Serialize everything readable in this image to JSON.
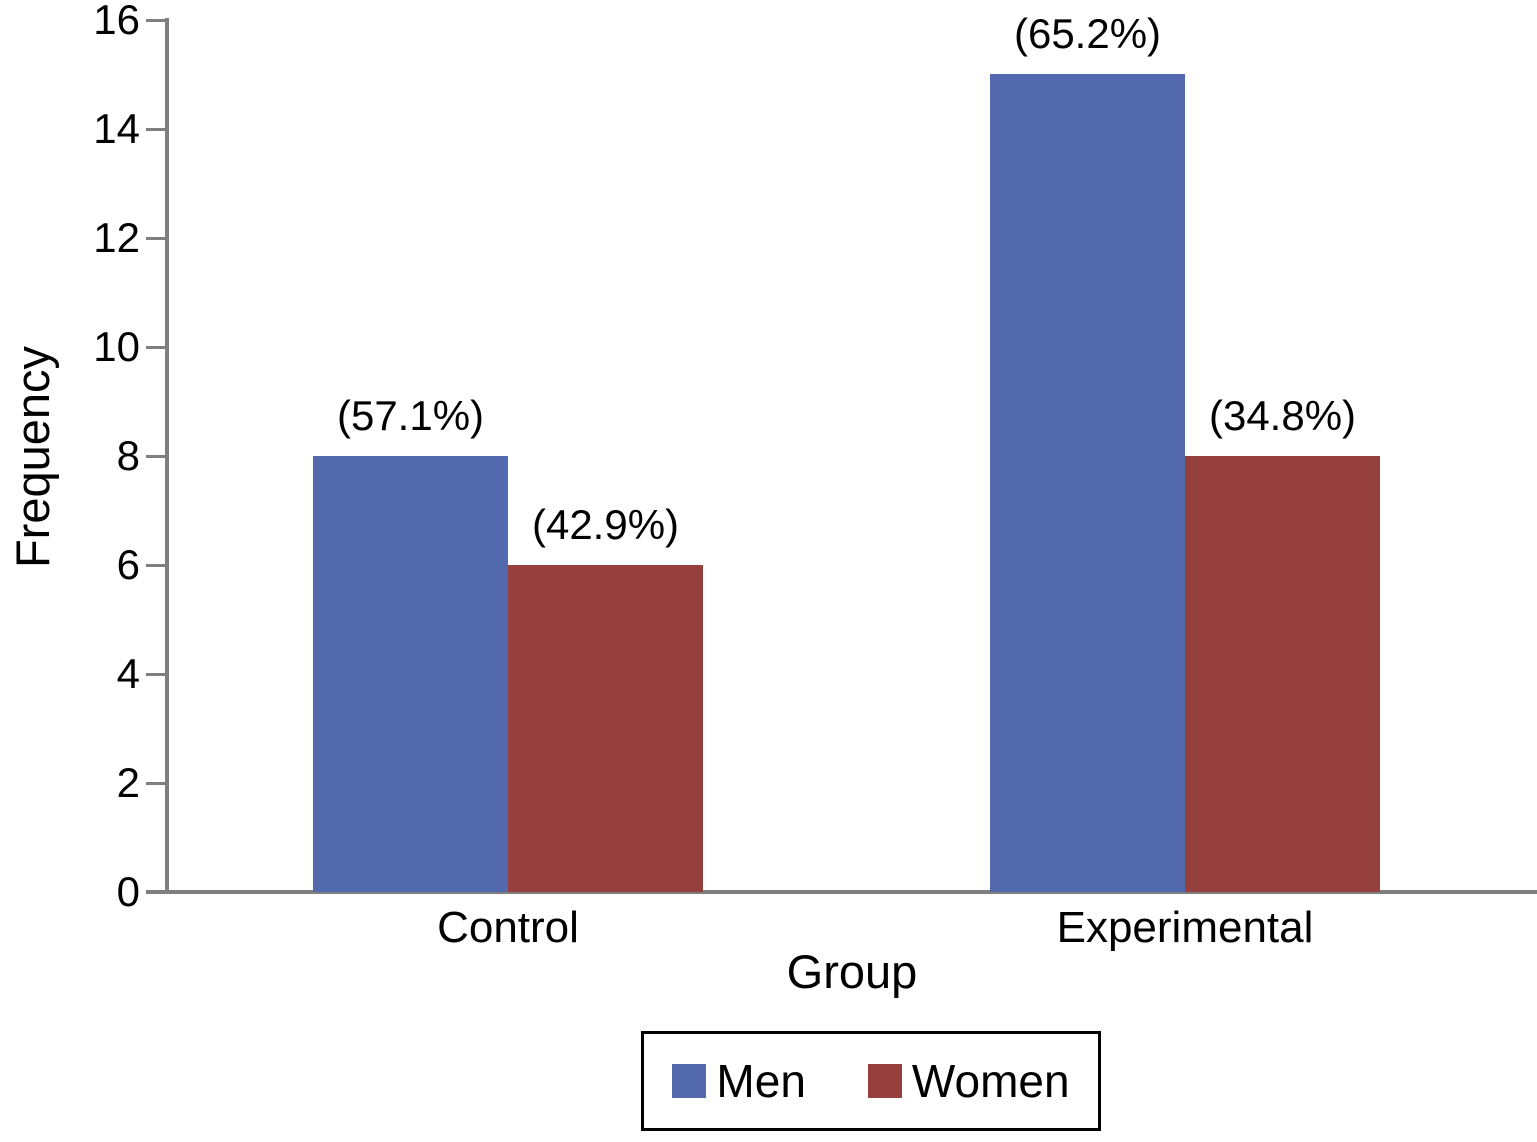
{
  "chart_data": {
    "type": "bar",
    "title": "",
    "xlabel": "Group",
    "ylabel": "Frequency",
    "categories": [
      "Control",
      "Experimental"
    ],
    "series": [
      {
        "name": "Men",
        "color": "#5369AE",
        "values": [
          8,
          15
        ],
        "bar_labels": [
          "(57.1%)",
          "(65.2%)"
        ]
      },
      {
        "name": "Women",
        "color": "#96403E",
        "values": [
          6,
          8
        ],
        "bar_labels": [
          "(42.9%)",
          "(34.8%)"
        ]
      }
    ],
    "ylim": [
      0,
      16
    ],
    "yticks": [
      0,
      2,
      4,
      6,
      8,
      10,
      12,
      14,
      16
    ],
    "grid": false,
    "legend_position": "bottom-center-boxed",
    "axis_color": "#7f7f7f",
    "text_color": "#000000",
    "background_color": "#ffffff"
  }
}
